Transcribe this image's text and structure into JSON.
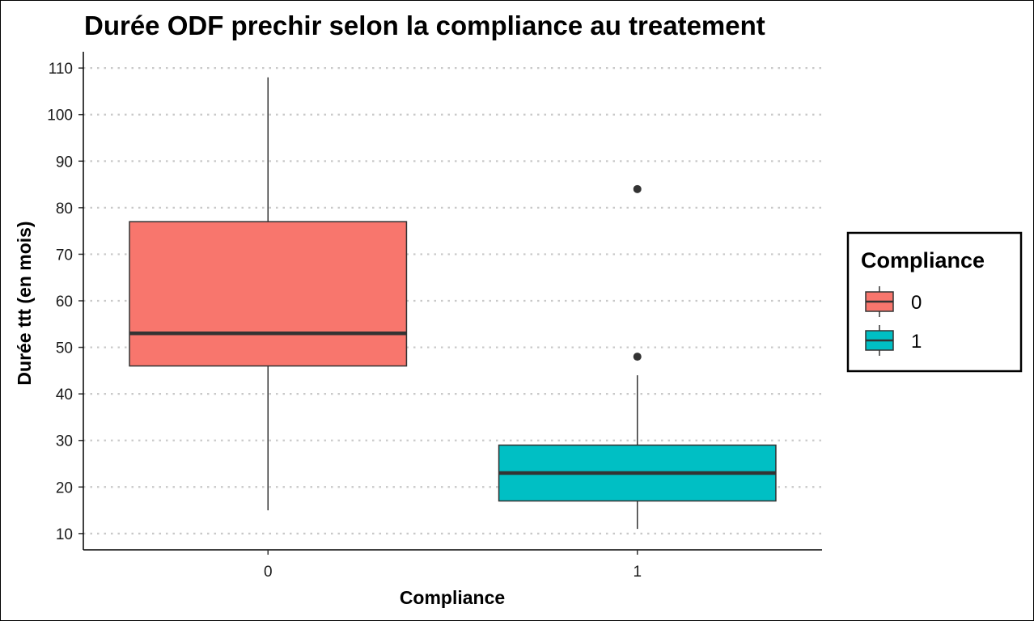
{
  "chart_data": {
    "type": "boxplot",
    "title": "Durée ODF prechir selon la compliance au treatement",
    "xlabel": "Compliance",
    "ylabel": "Durée ttt (en mois)",
    "ylim": [
      6.5,
      113.5
    ],
    "yticks": [
      10,
      20,
      30,
      40,
      50,
      60,
      70,
      80,
      90,
      100,
      110
    ],
    "grid": {
      "horizontal": true,
      "style": "dotted",
      "vertical": false
    },
    "legend": {
      "title": "Compliance",
      "position": "right",
      "entries": [
        "0",
        "1"
      ]
    },
    "categories": [
      "0",
      "1"
    ],
    "colors": [
      "#F8766D",
      "#00BFC4"
    ],
    "boxes": [
      {
        "category": "0",
        "whisker_low": 15,
        "q1": 46,
        "median": 53,
        "q3": 77,
        "whisker_high": 108,
        "outliers": []
      },
      {
        "category": "1",
        "whisker_low": 11,
        "q1": 17,
        "median": 23,
        "q3": 29,
        "whisker_high": 44,
        "outliers": [
          48,
          84
        ]
      }
    ]
  }
}
